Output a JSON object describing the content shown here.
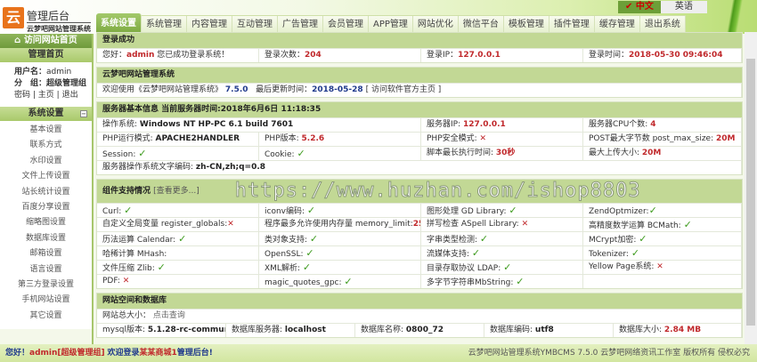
{
  "header": {
    "logo_char": "云",
    "title": "管理后台",
    "subtitle": "云梦吧网站管理系统",
    "tabs": [
      "系统设置",
      "系统管理",
      "内容管理",
      "互动管理",
      "广告管理",
      "会员管理",
      "APP管理",
      "网站优化",
      "微信平台",
      "模板管理",
      "插件管理",
      "缓存管理",
      "退出系统"
    ],
    "lang_zh": "中文",
    "lang_en": "英语"
  },
  "sidebar": {
    "visit_site": "访问网站首页",
    "home": "管理首页",
    "username_label": "用户名：",
    "username": "admin",
    "group_label": "分　组：",
    "group": "超级管理组",
    "links": [
      "密码",
      "主页",
      "退出"
    ],
    "section": "系统设置",
    "items": [
      "基本设置",
      "联系方式",
      "水印设置",
      "文件上传设置",
      "站长统计设置",
      "百度分享设置",
      "缩略图设置",
      "数据库设置",
      "邮箱设置",
      "语言设置",
      "第三方登录设置",
      "手机网站设置",
      "其它设置"
    ]
  },
  "login": {
    "title": "登录成功",
    "hello": "您好：",
    "user": "admin",
    "msg": "您已成功登录系统！",
    "count_label": "登录次数：",
    "count": "204",
    "ip_label": "登录IP：",
    "ip": "127.0.0.1",
    "time_label": "登录时间：",
    "time": "2018-05-30 09:46:04"
  },
  "system": {
    "title": "云梦吧网站管理系统",
    "welcome": "欢迎使用《云梦吧网站管理系统》",
    "version": "7.5.0",
    "update_label": "最后更新时间：",
    "update": "2018-05-28",
    "link": "[ 访问软件官方主页 ]"
  },
  "server": {
    "title": "服务器基本信息  当前服务器时间:2018年6月6日 11:18:35",
    "rows": [
      [
        {
          "l": "操作系统: ",
          "v": "Windows NT HP-PC 6.1 build 7601",
          "t": "k"
        },
        null,
        {
          "l": "服务器IP: ",
          "v": "127.0.0.1",
          "t": "r"
        },
        {
          "l": "服务器CPU个数: ",
          "v": "4",
          "t": "r"
        }
      ],
      [
        {
          "l": "PHP运行模式: ",
          "v": "APACHE2HANDLER",
          "t": "k"
        },
        {
          "l": "PHP版本: ",
          "v": "5.2.6",
          "t": "r"
        },
        {
          "l": "PHP安全模式: ",
          "v": "✕",
          "t": "no"
        },
        {
          "l": "POST最大字节数 post_max_size: ",
          "v": "20M",
          "t": "r"
        }
      ],
      [
        {
          "l": "Session: ",
          "v": "✓",
          "t": "ok"
        },
        {
          "l": "Cookie: ",
          "v": "✓",
          "t": "ok"
        },
        {
          "l": "脚本最长执行时间: ",
          "v": "30秒",
          "t": "r"
        },
        {
          "l": "最大上传大小: ",
          "v": "20M",
          "t": "r"
        }
      ],
      [
        {
          "l": "服务器操作系统文字编码: ",
          "v": "zh-CN,zh;q=0.8",
          "t": "k"
        }
      ]
    ]
  },
  "components": {
    "title": "组件支持情况",
    "more": "[查看更多...]",
    "rows": [
      [
        {
          "l": "Curl: ",
          "v": "✓",
          "t": "ok"
        },
        {
          "l": "iconv编码: ",
          "v": "✓",
          "t": "ok"
        },
        {
          "l": "图形处理 GD Library: ",
          "v": "✓",
          "t": "ok"
        },
        {
          "l": "ZendOptmizer:",
          "v": "✓",
          "t": "ok"
        }
      ],
      [
        {
          "l": "自定义全局变量 register_globals:",
          "v": "✕",
          "t": "no"
        },
        {
          "l": "程序最多允许使用内存量 memory_limit:",
          "v": "256M",
          "t": "r"
        },
        {
          "l": "拼写检查 ASpell Library: ",
          "v": "✕",
          "t": "no"
        },
        {
          "l": "高精度数学运算 BCMath: ",
          "v": "✓",
          "t": "ok"
        }
      ],
      [
        {
          "l": "历法运算 Calendar: ",
          "v": "✓",
          "t": "ok"
        },
        {
          "l": "类对象支持: ",
          "v": "✓",
          "t": "ok"
        },
        {
          "l": "字串类型检测: ",
          "v": "✓",
          "t": "ok"
        },
        {
          "l": "MCrypt加密: ",
          "v": "✓",
          "t": "ok"
        }
      ],
      [
        {
          "l": "哈稀计算 MHash: ",
          "v": "",
          "t": "ok"
        },
        {
          "l": "OpenSSL: ",
          "v": "✓",
          "t": "ok"
        },
        {
          "l": "流媒体支持: ",
          "v": "✓",
          "t": "ok"
        },
        {
          "l": "Tokenizer: ",
          "v": "✓",
          "t": "ok"
        }
      ],
      [
        {
          "l": "文件压缩 Zlib: ",
          "v": "✓",
          "t": "ok"
        },
        {
          "l": "XML解析: ",
          "v": "✓",
          "t": "ok"
        },
        {
          "l": "目录存取协议 LDAP: ",
          "v": "✓",
          "t": "ok"
        },
        {
          "l": "Yellow Page系统: ",
          "v": "✕",
          "t": "no"
        }
      ],
      [
        {
          "l": "PDF: ",
          "v": "✕",
          "t": "no"
        },
        {
          "l": "magic_quotes_gpc: ",
          "v": "✓",
          "t": "ok"
        },
        {
          "l": "多字节字符串MbString: ",
          "v": "✓",
          "t": "ok"
        },
        {
          "l": "",
          "v": "",
          "t": "k"
        }
      ]
    ]
  },
  "database": {
    "title": "网站空间和数据库",
    "size_label": "网站总大小：",
    "size_link": "点击查询",
    "cells": [
      {
        "l": "mysql版本: ",
        "v": "5.1.28-rc-community",
        "t": "k"
      },
      {
        "l": "数据库服务器: ",
        "v": "localhost",
        "t": "k"
      },
      {
        "l": "数据库名称: ",
        "v": "0800_72",
        "t": "k"
      },
      {
        "l": "数据库编码: ",
        "v": "utf8",
        "t": "k"
      },
      {
        "l": "数据库大小: ",
        "v": "2.84 MB",
        "t": "r"
      }
    ]
  },
  "footer": {
    "hello": "您好！",
    "user": "admin[超级管理组]",
    "welcome": "欢迎登录",
    "shop": "某某商城1",
    "admin": "管理后台!",
    "copyright": "云梦吧网站管理系统YMBCMS 7.5.0  云梦吧网络资讯工作室 版权所有 侵权必究"
  },
  "watermark": "https://www.huzhan.com/ishop8803",
  "colors": {
    "accent": "#8fb55a",
    "section": "#c2d895",
    "value_red": "#c0282b",
    "value_blue": "#203a8c",
    "ok": "#3c9a1c"
  }
}
